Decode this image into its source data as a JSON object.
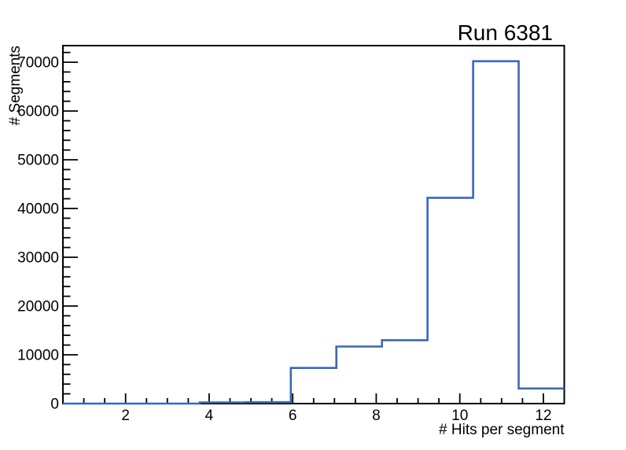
{
  "page": {
    "background": "#ffffff"
  },
  "chart_data": {
    "type": "histogram-step",
    "title": "Run 6381",
    "xlabel": "# Hits per segment",
    "ylabel": "# Segments",
    "xlim": [
      0.5,
      12.5
    ],
    "ylim": [
      0,
      73400
    ],
    "x_major_ticks": [
      2,
      4,
      6,
      8,
      10,
      12
    ],
    "x_minor_step": 0.5,
    "y_major_ticks": [
      0,
      10000,
      20000,
      30000,
      40000,
      50000,
      60000,
      70000
    ],
    "y_minor_step": 2000,
    "bin_edges": [
      0.5,
      1.5909,
      2.6818,
      3.7727,
      4.8636,
      5.9545,
      7.0455,
      8.1364,
      9.2273,
      10.3182,
      11.4091,
      12.5
    ],
    "counts": [
      0,
      0,
      0,
      250,
      280,
      7300,
      11700,
      13000,
      42200,
      70200,
      3100
    ],
    "line_color": "#3a67ba",
    "axis_color": "#000000",
    "grid": false
  }
}
